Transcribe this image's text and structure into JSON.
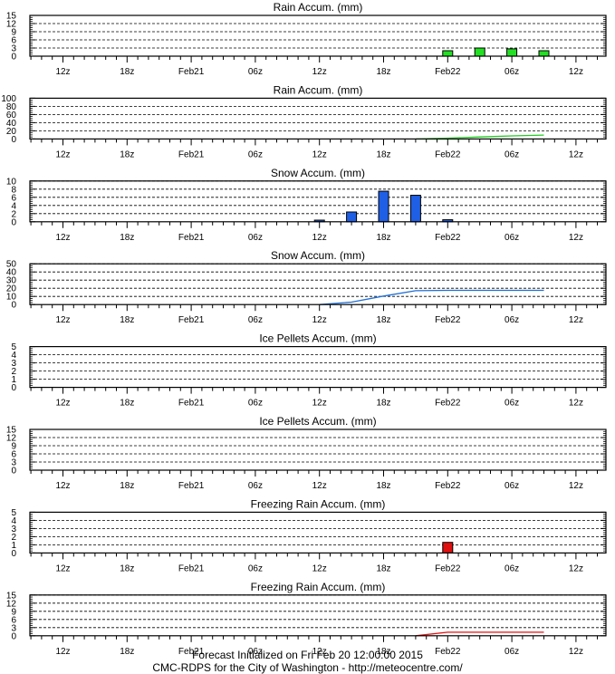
{
  "chart_data": [
    {
      "type": "bar",
      "title": "Rain Accum. (mm)",
      "yticks": [
        0,
        3,
        6,
        9,
        12,
        15
      ],
      "ylim": [
        0,
        15
      ],
      "x_labels": [
        "12z",
        "18z",
        "Feb21",
        "06z",
        "12z",
        "18z",
        "Feb22",
        "06z",
        "12z"
      ],
      "bars": [
        {
          "x": 39,
          "value": 2.0
        },
        {
          "x": 42,
          "value": 3.0
        },
        {
          "x": 45,
          "value": 2.7
        },
        {
          "x": 48,
          "value": 2.0
        }
      ],
      "color": "#22e022",
      "grid": true
    },
    {
      "type": "line",
      "title": "Rain Accum. (mm)",
      "yticks": [
        0,
        20,
        40,
        60,
        80,
        100
      ],
      "ylim": [
        0,
        100
      ],
      "x_labels": [
        "12z",
        "18z",
        "Feb21",
        "06z",
        "12z",
        "18z",
        "Feb22",
        "06z",
        "12z"
      ],
      "points": [
        [
          36,
          0
        ],
        [
          39,
          2
        ],
        [
          42,
          5
        ],
        [
          45,
          7.5
        ],
        [
          48,
          9.5
        ]
      ],
      "color": "#22cc22",
      "grid": true
    },
    {
      "type": "bar",
      "title": "Snow Accum. (mm)",
      "yticks": [
        0,
        2,
        4,
        6,
        8,
        10
      ],
      "ylim": [
        0,
        10
      ],
      "x_labels": [
        "12z",
        "18z",
        "Feb21",
        "06z",
        "12z",
        "18z",
        "Feb22",
        "06z",
        "12z"
      ],
      "bars": [
        {
          "x": 27,
          "value": 0.4
        },
        {
          "x": 30,
          "value": 2.4
        },
        {
          "x": 33,
          "value": 7.5
        },
        {
          "x": 36,
          "value": 6.5
        },
        {
          "x": 39,
          "value": 0.5
        }
      ],
      "color": "#1f5fe6",
      "grid": true
    },
    {
      "type": "line",
      "title": "Snow Accum. (mm)",
      "yticks": [
        0,
        10,
        20,
        30,
        40,
        50
      ],
      "ylim": [
        0,
        50
      ],
      "x_labels": [
        "12z",
        "18z",
        "Feb21",
        "06z",
        "12z",
        "18z",
        "Feb22",
        "06z",
        "12z"
      ],
      "points": [
        [
          27,
          0
        ],
        [
          30,
          3
        ],
        [
          33,
          10.5
        ],
        [
          36,
          17
        ],
        [
          39,
          17.5
        ],
        [
          42,
          17.5
        ],
        [
          45,
          17.5
        ],
        [
          48,
          17.5
        ]
      ],
      "color": "#1f6fd6",
      "grid": true
    },
    {
      "type": "bar",
      "title": "Ice Pellets Accum. (mm)",
      "yticks": [
        0,
        1,
        2,
        3,
        4,
        5
      ],
      "ylim": [
        0,
        5
      ],
      "x_labels": [
        "12z",
        "18z",
        "Feb21",
        "06z",
        "12z",
        "18z",
        "Feb22",
        "06z",
        "12z"
      ],
      "bars": [],
      "color": "#888888",
      "grid": true
    },
    {
      "type": "line",
      "title": "Ice Pellets Accum. (mm)",
      "yticks": [
        0,
        3,
        6,
        9,
        12,
        15
      ],
      "ylim": [
        0,
        15
      ],
      "x_labels": [
        "12z",
        "18z",
        "Feb21",
        "06z",
        "12z",
        "18z",
        "Feb22",
        "06z",
        "12z"
      ],
      "points": [],
      "color": "#888888",
      "grid": true
    },
    {
      "type": "bar",
      "title": "Freezing Rain Accum. (mm)",
      "yticks": [
        0,
        1,
        2,
        3,
        4,
        5
      ],
      "ylim": [
        0,
        5
      ],
      "x_labels": [
        "12z",
        "18z",
        "Feb21",
        "06z",
        "12z",
        "18z",
        "Feb22",
        "06z",
        "12z"
      ],
      "bars": [
        {
          "x": 39,
          "value": 1.3
        }
      ],
      "color": "#e01010",
      "grid": true
    },
    {
      "type": "line",
      "title": "Freezing Rain Accum. (mm)",
      "yticks": [
        0,
        3,
        6,
        9,
        12,
        15
      ],
      "ylim": [
        0,
        15
      ],
      "x_labels": [
        "12z",
        "18z",
        "Feb21",
        "06z",
        "12z",
        "18z",
        "Feb22",
        "06z",
        "12z"
      ],
      "points": [
        [
          36,
          0
        ],
        [
          39,
          1.3
        ],
        [
          42,
          1.3
        ],
        [
          45,
          1.3
        ],
        [
          48,
          1.3
        ]
      ],
      "color": "#e01010",
      "grid": true
    }
  ],
  "footer": {
    "line1": "Forecast Initialized on Fri Feb 20 12:00:00 2015",
    "line2": "CMC-RDPS for the City of Washington - http://meteocentre.com/"
  }
}
